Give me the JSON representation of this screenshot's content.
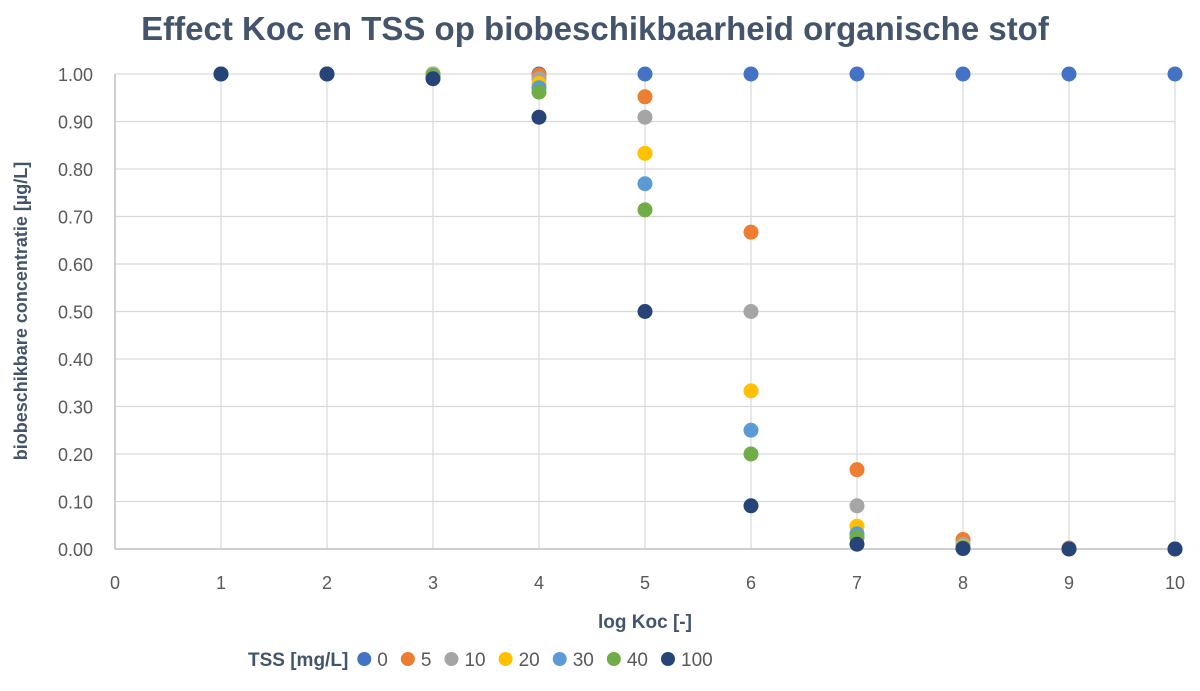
{
  "chart_data": {
    "type": "scatter",
    "title": "Effect Koc en TSS op biobeschikbaarheid organische stof",
    "xlabel": "log Koc [-]",
    "ylabel": "biobeschikbare concentratie  [µg/L]",
    "xlim": [
      0,
      10
    ],
    "ylim": [
      0,
      1
    ],
    "x_ticks": [
      "0",
      "1",
      "2",
      "3",
      "4",
      "5",
      "6",
      "7",
      "8",
      "9",
      "10"
    ],
    "y_ticks": [
      "0.00",
      "0.10",
      "0.20",
      "0.30",
      "0.40",
      "0.50",
      "0.60",
      "0.70",
      "0.80",
      "0.90",
      "1.00"
    ],
    "grid": true,
    "legend_title": "TSS [mg/L]",
    "legend_position": "bottom",
    "x": [
      1,
      2,
      3,
      4,
      5,
      6,
      7,
      8,
      9,
      10
    ],
    "series": [
      {
        "name": "0",
        "color": "#4472C4",
        "values": [
          1.0,
          1.0,
          1.0,
          1.0,
          1.0,
          1.0,
          1.0,
          1.0,
          1.0,
          1.0
        ]
      },
      {
        "name": "5",
        "color": "#ED7D31",
        "values": [
          1.0,
          1.0,
          1.0,
          0.998,
          0.952,
          0.667,
          0.167,
          0.02,
          0.002,
          0.0
        ]
      },
      {
        "name": "10",
        "color": "#A5A5A5",
        "values": [
          1.0,
          1.0,
          1.0,
          0.99,
          0.909,
          0.5,
          0.091,
          0.01,
          0.001,
          0.0
        ]
      },
      {
        "name": "20",
        "color": "#FFC000",
        "values": [
          1.0,
          1.0,
          0.998,
          0.98,
          0.833,
          0.333,
          0.048,
          0.005,
          0.0,
          0.0
        ]
      },
      {
        "name": "30",
        "color": "#5B9BD5",
        "values": [
          1.0,
          1.0,
          0.997,
          0.971,
          0.769,
          0.25,
          0.032,
          0.003,
          0.0,
          0.0
        ]
      },
      {
        "name": "40",
        "color": "#70AD47",
        "values": [
          1.0,
          1.0,
          0.996,
          0.962,
          0.714,
          0.2,
          0.024,
          0.002,
          0.0,
          0.0
        ]
      },
      {
        "name": "100",
        "color": "#264478",
        "values": [
          1.0,
          1.0,
          0.99,
          0.909,
          0.5,
          0.091,
          0.01,
          0.001,
          0.0,
          0.0
        ]
      }
    ]
  }
}
